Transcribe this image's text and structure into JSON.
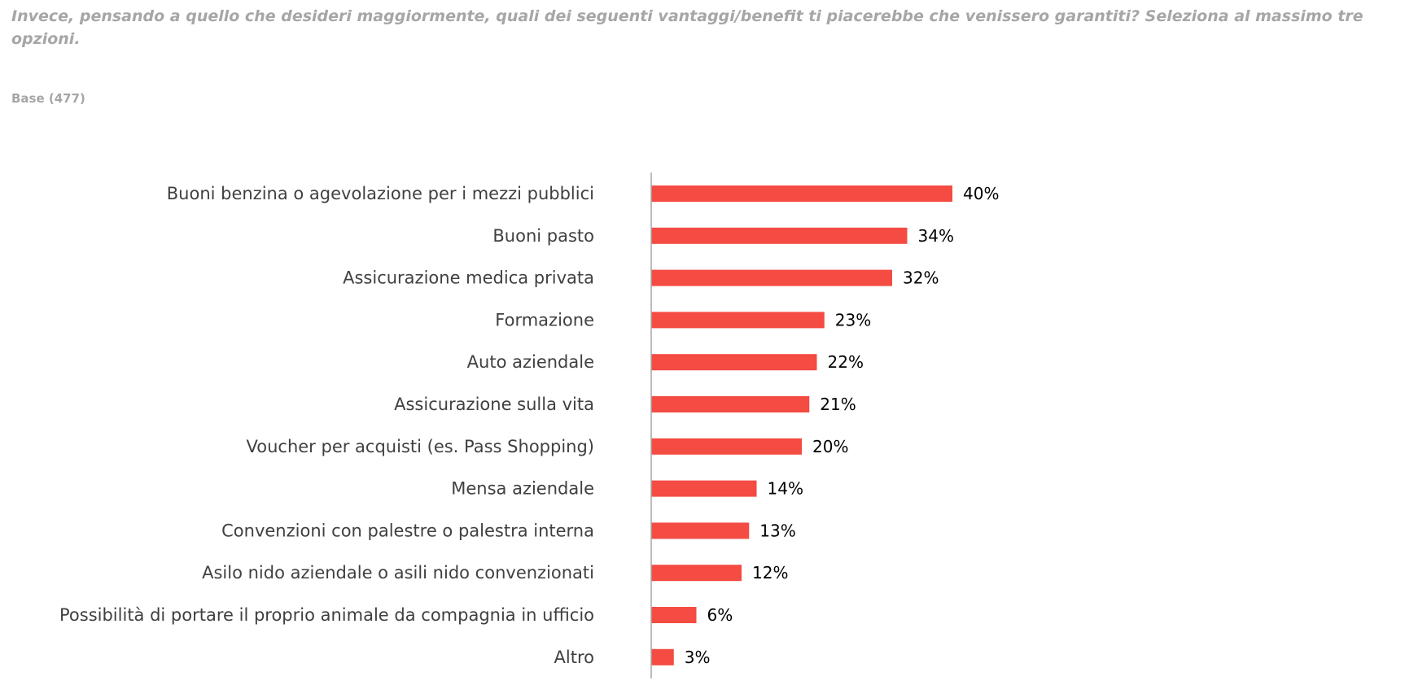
{
  "header": {
    "question": "Invece, pensando a quello che desideri maggiormente, quali dei seguenti vantaggi/benefit ti piacerebbe che venissero garantiti? Seleziona al massimo tre opzioni.",
    "base": "Base (477)"
  },
  "chart_data": {
    "type": "bar",
    "orientation": "horizontal",
    "categories": [
      "Buoni benzina o agevolazione per i mezzi pubblici",
      "Buoni pasto",
      "Assicurazione medica privata",
      "Formazione",
      "Auto aziendale",
      "Assicurazione sulla vita",
      "Voucher per acquisti (es. Pass Shopping)",
      "Mensa aziendale",
      "Convenzioni con palestre o palestra interna",
      "Asilo nido aziendale o asili nido convenzionati",
      "Possibilità di portare il proprio animale da compagnia in ufficio",
      "Altro"
    ],
    "values": [
      40,
      34,
      32,
      23,
      22,
      21,
      20,
      14,
      13,
      12,
      6,
      3
    ],
    "value_labels": [
      "40%",
      "34%",
      "32%",
      "23%",
      "22%",
      "21%",
      "20%",
      "14%",
      "13%",
      "12%",
      "6%",
      "3%"
    ],
    "unit": "%",
    "bar_color": "#f44b42",
    "axis_color": "#a6a6a6",
    "grid": false,
    "legend": "none"
  }
}
